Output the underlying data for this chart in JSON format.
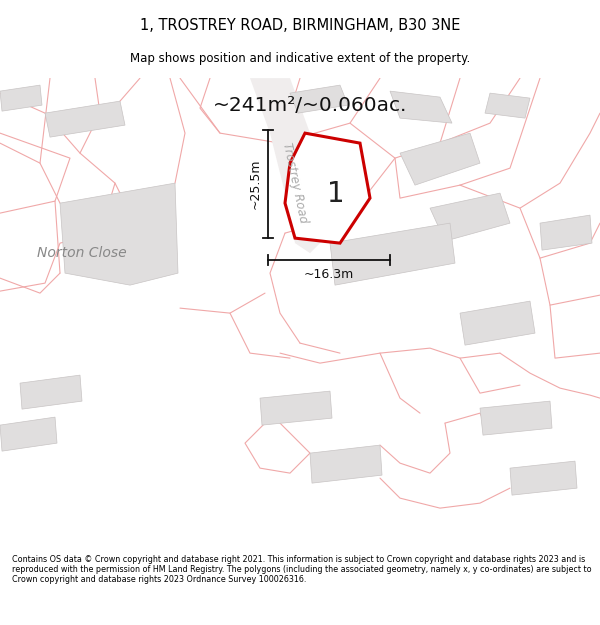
{
  "title": "1, TROSTREY ROAD, BIRMINGHAM, B30 3NE",
  "subtitle": "Map shows position and indicative extent of the property.",
  "area_text": "~241m²/~0.060ac.",
  "label_number": "1",
  "dim_width": "~16.3m",
  "dim_height": "~25.5m",
  "road_label": "Trostrey Road",
  "place_label": "Norton Close",
  "footer": "Contains OS data © Crown copyright and database right 2021. This information is subject to Crown copyright and database rights 2023 and is reproduced with the permission of HM Land Registry. The polygons (including the associated geometry, namely x, y co-ordinates) are subject to Crown copyright and database rights 2023 Ordnance Survey 100026316.",
  "map_bg": "#f8f6f6",
  "plot_fill": "#ffffff",
  "plot_edge": "#cc0000",
  "bld_fill": "#e0dede",
  "bld_edge": "#c8c4c4",
  "road_line_color": "#f0a8a8",
  "dim_color": "#111111",
  "label_color": "#333333",
  "road_label_color": "#aaaaaa",
  "place_label_color": "#888888"
}
